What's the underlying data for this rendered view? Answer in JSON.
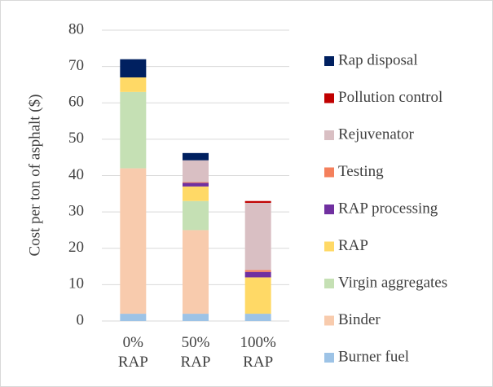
{
  "chart_data": {
    "type": "stacked_bar",
    "y_label": "Cost per ton of asphalt ($)",
    "categories": [
      "0% RAP",
      "50% RAP",
      "100% RAP"
    ],
    "series": [
      {
        "name": "Burner fuel",
        "color": "#9dc3e6",
        "values": [
          2,
          2,
          2
        ]
      },
      {
        "name": "Binder",
        "color": "#f8cbad",
        "values": [
          40,
          23,
          0
        ]
      },
      {
        "name": "Virgin aggregates",
        "color": "#c5e0b4",
        "values": [
          21,
          8,
          0
        ]
      },
      {
        "name": "RAP",
        "color": "#ffd966",
        "values": [
          4,
          4,
          10
        ]
      },
      {
        "name": "RAP processing",
        "color": "#7030a0",
        "values": [
          0,
          1,
          1.5
        ]
      },
      {
        "name": "Testing",
        "color": "#f4805c",
        "values": [
          0,
          0.2,
          0.5
        ]
      },
      {
        "name": "Rejuvenator",
        "color": "#d9bfc3",
        "values": [
          0,
          6,
          18.5
        ]
      },
      {
        "name": "Pollution control",
        "color": "#c00000",
        "values": [
          0,
          0,
          0.5
        ]
      },
      {
        "name": "Rap disposal",
        "color": "#002060",
        "values": [
          5,
          2,
          0
        ]
      }
    ],
    "ylim": [
      0,
      80
    ],
    "yticks": [
      0,
      10,
      20,
      30,
      40,
      50,
      60,
      70,
      80
    ],
    "grid": true
  }
}
